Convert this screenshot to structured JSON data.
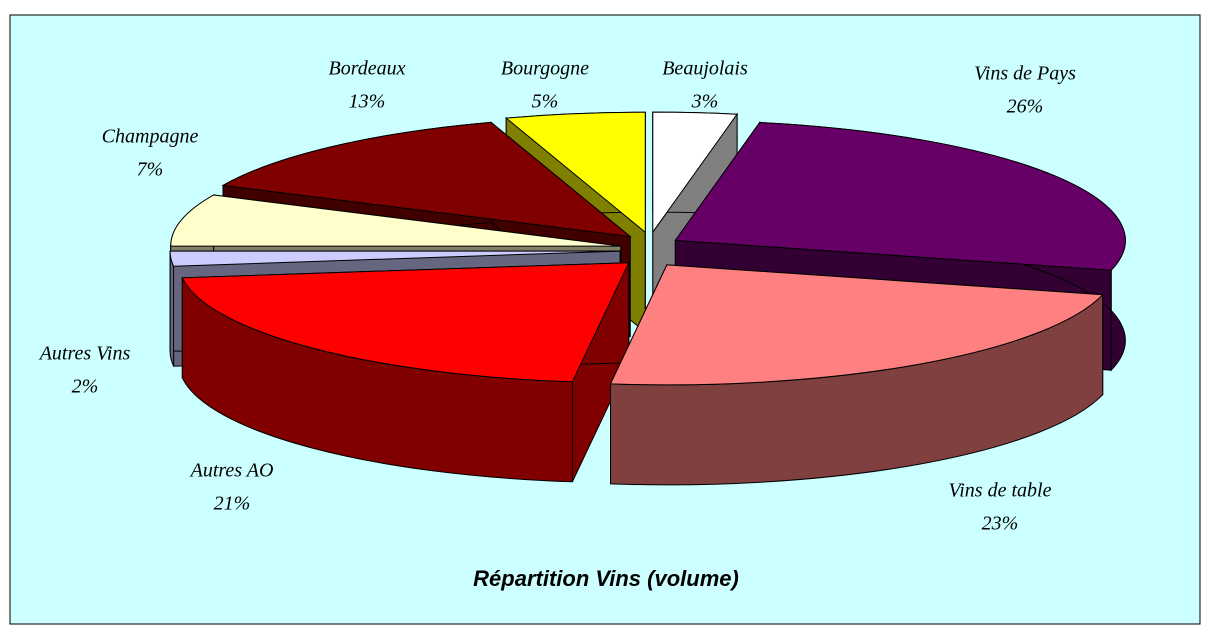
{
  "chart_data": {
    "type": "pie",
    "title": "Répartition Vins (volume)",
    "categories": [
      "Beaujolais",
      "Vins de Pays",
      "Vins de table",
      "Autres AO",
      "Autres Vins",
      "Champagne",
      "Bordeaux",
      "Bourgogne"
    ],
    "values": [
      3,
      26,
      23,
      21,
      2,
      7,
      13,
      5
    ],
    "value_labels": [
      "3%",
      "26%",
      "23%",
      "21%",
      "2%",
      "7%",
      "13%",
      "5%"
    ],
    "colors": [
      "#ffffff",
      "#660066",
      "#ff8080",
      "#ff0000",
      "#ccccff",
      "#ffffcc",
      "#800000",
      "#ffff00"
    ]
  }
}
